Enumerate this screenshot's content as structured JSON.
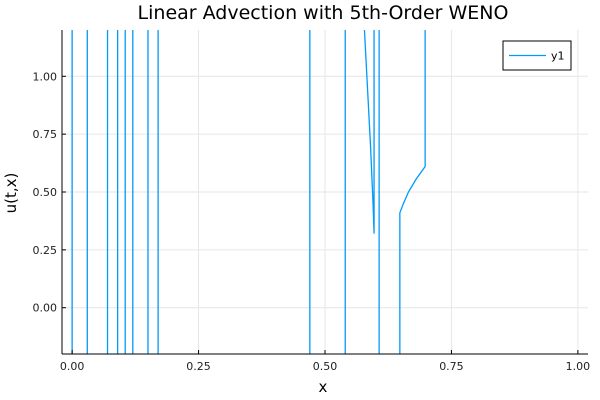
{
  "chart_data": {
    "type": "line",
    "title": "Linear Advection with 5th-Order WENO",
    "xlabel": "x",
    "ylabel": "u(t,x)",
    "xlim": [
      -0.02,
      1.02
    ],
    "ylim": [
      -0.2,
      1.2
    ],
    "x_ticks": [
      0.0,
      0.25,
      0.5,
      0.75,
      1.0
    ],
    "x_tick_labels": [
      "0.00",
      "0.25",
      "0.50",
      "0.75",
      "1.00"
    ],
    "y_ticks": [
      0.0,
      0.25,
      0.5,
      0.75,
      1.0
    ],
    "y_tick_labels": [
      "0.00",
      "0.25",
      "0.50",
      "0.75",
      "1.00"
    ],
    "grid": true,
    "legend_position": "top-right",
    "series_color": "#009af9",
    "series": [
      {
        "name": "y1",
        "segments": [
          [
            [
              0.0,
              -0.2
            ],
            [
              0.0,
              1.2
            ]
          ],
          [
            [
              0.03,
              -0.2
            ],
            [
              0.03,
              1.2
            ]
          ],
          [
            [
              0.07,
              -0.2
            ],
            [
              0.07,
              1.2
            ]
          ],
          [
            [
              0.09,
              -0.2
            ],
            [
              0.09,
              1.2
            ]
          ],
          [
            [
              0.105,
              -0.2
            ],
            [
              0.105,
              1.2
            ]
          ],
          [
            [
              0.12,
              -0.2
            ],
            [
              0.12,
              1.2
            ]
          ],
          [
            [
              0.15,
              -0.2
            ],
            [
              0.15,
              1.2
            ]
          ],
          [
            [
              0.17,
              -0.2
            ],
            [
              0.17,
              1.2
            ]
          ],
          [
            [
              0.47,
              -0.2
            ],
            [
              0.47,
              1.2
            ]
          ],
          [
            [
              0.54,
              -0.2
            ],
            [
              0.54,
              1.2
            ]
          ],
          [
            [
              0.578,
              1.2
            ],
            [
              0.584,
              0.95
            ],
            [
              0.59,
              0.7
            ],
            [
              0.595,
              0.45
            ],
            [
              0.597,
              0.32
            ],
            [
              0.597,
              1.2
            ]
          ],
          [
            [
              0.607,
              -0.2
            ],
            [
              0.607,
              1.2
            ]
          ],
          [
            [
              0.648,
              -0.2
            ],
            [
              0.648,
              0.41
            ],
            [
              0.655,
              0.45
            ],
            [
              0.665,
              0.5
            ],
            [
              0.68,
              0.555
            ],
            [
              0.698,
              0.61
            ],
            [
              0.698,
              1.2
            ]
          ]
        ]
      }
    ]
  }
}
